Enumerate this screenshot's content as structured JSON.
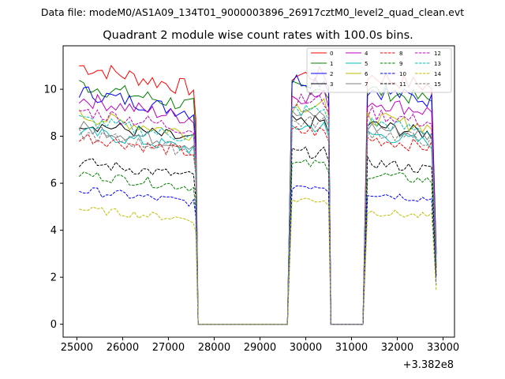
{
  "chart_data": {
    "type": "line",
    "suptitle": "Data file: modeM0/AS1A09_134T01_9000003896_26917cztM0_level2_quad_clean.evt",
    "title": "Quadrant 2 module wise count rates with 100.0s bins.",
    "xlabel": "",
    "ylabel": "",
    "x_offset_label": "+3.382e8",
    "xlim": [
      24700,
      33250
    ],
    "ylim": [
      -0.55,
      11.85
    ],
    "xticks": [
      25000,
      26000,
      27000,
      28000,
      29000,
      30000,
      31000,
      32000,
      33000
    ],
    "xtick_labels": [
      "25000",
      "26000",
      "27000",
      "28000",
      "29000",
      "30000",
      "31000",
      "32000",
      "33000"
    ],
    "yticks": [
      0,
      2,
      4,
      6,
      8,
      10
    ],
    "ytick_labels": [
      "0",
      "2",
      "4",
      "6",
      "8",
      "10"
    ],
    "gaps": [
      [
        27650,
        29600
      ],
      [
        30550,
        31250
      ]
    ],
    "segments": [
      [
        25050,
        27650
      ],
      [
        29600,
        30550
      ],
      [
        31250,
        32850
      ]
    ],
    "legend_position": "top-right",
    "series": [
      {
        "name": "0",
        "color": "#ff0000",
        "dash": "solid",
        "levels": [
          11.0,
          10.6,
          10.6
        ]
      },
      {
        "name": "1",
        "color": "#008000",
        "dash": "solid",
        "levels": [
          10.2,
          10.1,
          10.0
        ]
      },
      {
        "name": "2",
        "color": "#0000ff",
        "dash": "solid",
        "levels": [
          9.9,
          10.4,
          10.0
        ]
      },
      {
        "name": "3",
        "color": "#000000",
        "dash": "solid",
        "levels": [
          8.6,
          8.6,
          8.5
        ]
      },
      {
        "name": "4",
        "color": "#bf00bf",
        "dash": "solid",
        "levels": [
          9.6,
          9.7,
          9.5
        ]
      },
      {
        "name": "5",
        "color": "#00bfbf",
        "dash": "solid",
        "levels": [
          8.2,
          8.4,
          8.1
        ]
      },
      {
        "name": "6",
        "color": "#bfbf00",
        "dash": "solid",
        "levels": [
          8.9,
          9.3,
          8.8
        ]
      },
      {
        "name": "7",
        "color": "#808080",
        "dash": "solid",
        "levels": [
          8.4,
          8.9,
          8.4
        ]
      },
      {
        "name": "8",
        "color": "#ff0000",
        "dash": "dashed",
        "levels": [
          8.0,
          8.2,
          7.9
        ]
      },
      {
        "name": "9",
        "color": "#008000",
        "dash": "dashed",
        "levels": [
          6.4,
          6.8,
          6.4
        ]
      },
      {
        "name": "10",
        "color": "#0000ff",
        "dash": "dashed",
        "levels": [
          5.7,
          5.9,
          5.6
        ]
      },
      {
        "name": "11",
        "color": "#000000",
        "dash": "dashed",
        "levels": [
          6.9,
          7.3,
          6.9
        ]
      },
      {
        "name": "12",
        "color": "#bf00bf",
        "dash": "dashed",
        "levels": [
          9.1,
          9.5,
          9.0
        ]
      },
      {
        "name": "13",
        "color": "#00bfbf",
        "dash": "dashed",
        "levels": [
          8.7,
          9.1,
          8.6
        ]
      },
      {
        "name": "14",
        "color": "#bfbf00",
        "dash": "dashed",
        "levels": [
          4.9,
          5.3,
          4.8
        ]
      },
      {
        "name": "15",
        "color": "#808080",
        "dash": "dashed",
        "levels": [
          8.1,
          8.6,
          8.2
        ]
      }
    ]
  }
}
